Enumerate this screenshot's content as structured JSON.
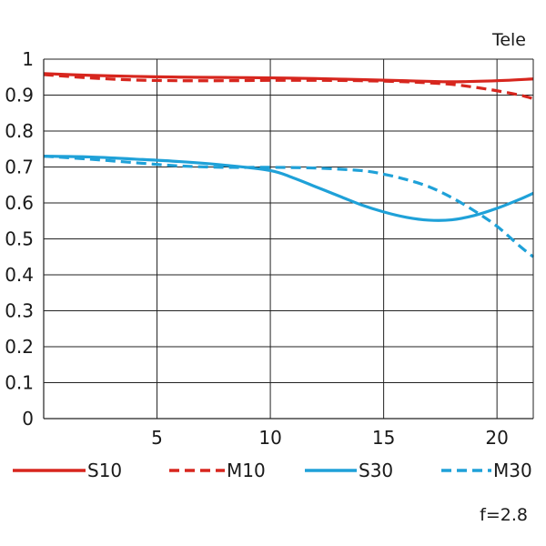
{
  "chart_data": {
    "type": "line",
    "title": "",
    "xlabel": "",
    "ylabel": "",
    "corner_label": "Tele",
    "footnote": "f=2.8",
    "xlim": [
      0,
      21.6
    ],
    "ylim": [
      0,
      1
    ],
    "x_ticks": [
      "5",
      "10",
      "15",
      "20"
    ],
    "x_tick_values": [
      5,
      10,
      15,
      20
    ],
    "y_ticks": [
      "0",
      "0.1",
      "0.2",
      "0.3",
      "0.4",
      "0.5",
      "0.6",
      "0.7",
      "0.8",
      "0.9",
      "1"
    ],
    "y_tick_values": [
      0,
      0.1,
      0.2,
      0.3,
      0.4,
      0.5,
      0.6,
      0.7,
      0.8,
      0.9,
      1
    ],
    "grid": true,
    "legend_position": "bottom",
    "series": [
      {
        "name": "S10",
        "color": "#d7261e",
        "dash": false,
        "x": [
          0,
          2,
          4,
          6,
          8,
          10,
          12,
          14,
          16,
          18,
          20,
          21.6
        ],
        "y": [
          0.96,
          0.955,
          0.952,
          0.95,
          0.949,
          0.948,
          0.946,
          0.943,
          0.94,
          0.937,
          0.94,
          0.945
        ]
      },
      {
        "name": "M10",
        "color": "#d7261e",
        "dash": true,
        "x": [
          0,
          2,
          4,
          6,
          8,
          10,
          12,
          14,
          16,
          17,
          18,
          19,
          20,
          21,
          21.6
        ],
        "y": [
          0.957,
          0.948,
          0.942,
          0.94,
          0.94,
          0.941,
          0.941,
          0.94,
          0.937,
          0.934,
          0.93,
          0.922,
          0.912,
          0.9,
          0.89
        ]
      },
      {
        "name": "S30",
        "color": "#1fa1d8",
        "dash": false,
        "x": [
          0,
          2,
          4,
          6,
          8,
          10,
          11,
          12,
          13,
          14,
          15,
          16,
          17,
          18,
          19,
          20,
          21,
          21.6
        ],
        "y": [
          0.73,
          0.728,
          0.722,
          0.715,
          0.705,
          0.69,
          0.67,
          0.645,
          0.62,
          0.595,
          0.575,
          0.56,
          0.552,
          0.553,
          0.565,
          0.585,
          0.61,
          0.627
        ]
      },
      {
        "name": "M30",
        "color": "#1fa1d8",
        "dash": true,
        "x": [
          0,
          2,
          4,
          6,
          8,
          10,
          12,
          14,
          15,
          16,
          17,
          18,
          19,
          20,
          21,
          21.6
        ],
        "y": [
          0.73,
          0.722,
          0.712,
          0.703,
          0.699,
          0.699,
          0.697,
          0.69,
          0.68,
          0.665,
          0.645,
          0.615,
          0.578,
          0.535,
          0.48,
          0.45
        ]
      }
    ]
  }
}
